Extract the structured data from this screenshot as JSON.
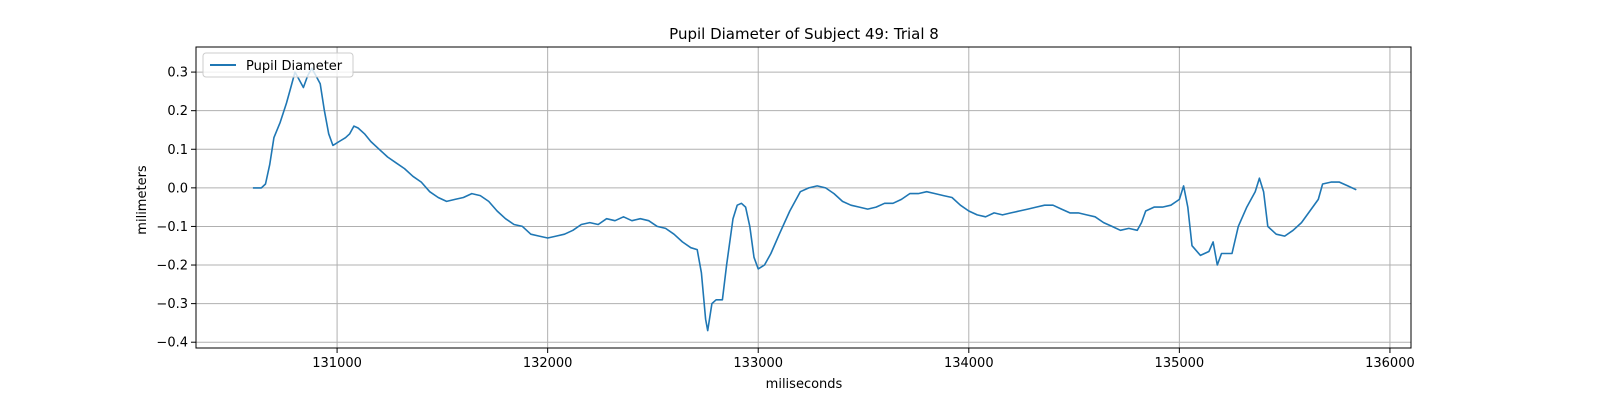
{
  "chart_data": {
    "type": "line",
    "title": "Pupil Diameter of Subject 49: Trial 8",
    "xlabel": "miliseconds",
    "ylabel": "milimeters",
    "xlim": [
      130330,
      136100
    ],
    "ylim": [
      -0.415,
      0.365
    ],
    "xticks": [
      131000,
      132000,
      133000,
      134000,
      135000,
      136000
    ],
    "xtick_labels": [
      "131000",
      "132000",
      "133000",
      "134000",
      "135000",
      "136000"
    ],
    "yticks": [
      -0.4,
      -0.3,
      -0.2,
      -0.1,
      0.0,
      0.1,
      0.2,
      0.3
    ],
    "ytick_labels": [
      "−0.4",
      "−0.3",
      "−0.2",
      "−0.1",
      "0.0",
      "0.1",
      "0.2",
      "0.3"
    ],
    "grid": true,
    "legend_position": "top-left",
    "color": "#1f77b4",
    "series": [
      {
        "name": "Pupil Diameter",
        "points": [
          [
            130600,
            0.0
          ],
          [
            130640,
            0.0
          ],
          [
            130660,
            0.01
          ],
          [
            130680,
            0.06
          ],
          [
            130700,
            0.13
          ],
          [
            130730,
            0.17
          ],
          [
            130760,
            0.22
          ],
          [
            130780,
            0.26
          ],
          [
            130800,
            0.3
          ],
          [
            130820,
            0.28
          ],
          [
            130840,
            0.26
          ],
          [
            130860,
            0.29
          ],
          [
            130880,
            0.31
          ],
          [
            130900,
            0.29
          ],
          [
            130920,
            0.27
          ],
          [
            130940,
            0.2
          ],
          [
            130960,
            0.14
          ],
          [
            130980,
            0.11
          ],
          [
            131010,
            0.12
          ],
          [
            131040,
            0.13
          ],
          [
            131060,
            0.14
          ],
          [
            131080,
            0.16
          ],
          [
            131100,
            0.155
          ],
          [
            131130,
            0.14
          ],
          [
            131160,
            0.12
          ],
          [
            131200,
            0.1
          ],
          [
            131240,
            0.08
          ],
          [
            131280,
            0.065
          ],
          [
            131320,
            0.05
          ],
          [
            131360,
            0.03
          ],
          [
            131400,
            0.015
          ],
          [
            131440,
            -0.01
          ],
          [
            131480,
            -0.025
          ],
          [
            131520,
            -0.035
          ],
          [
            131560,
            -0.03
          ],
          [
            131600,
            -0.025
          ],
          [
            131640,
            -0.015
          ],
          [
            131680,
            -0.02
          ],
          [
            131720,
            -0.035
          ],
          [
            131760,
            -0.06
          ],
          [
            131800,
            -0.08
          ],
          [
            131840,
            -0.095
          ],
          [
            131880,
            -0.1
          ],
          [
            131920,
            -0.12
          ],
          [
            131960,
            -0.125
          ],
          [
            132000,
            -0.13
          ],
          [
            132040,
            -0.125
          ],
          [
            132080,
            -0.12
          ],
          [
            132120,
            -0.11
          ],
          [
            132160,
            -0.095
          ],
          [
            132200,
            -0.09
          ],
          [
            132240,
            -0.095
          ],
          [
            132280,
            -0.08
          ],
          [
            132320,
            -0.085
          ],
          [
            132360,
            -0.075
          ],
          [
            132400,
            -0.085
          ],
          [
            132440,
            -0.08
          ],
          [
            132480,
            -0.085
          ],
          [
            132520,
            -0.1
          ],
          [
            132560,
            -0.105
          ],
          [
            132600,
            -0.12
          ],
          [
            132640,
            -0.14
          ],
          [
            132680,
            -0.155
          ],
          [
            132710,
            -0.16
          ],
          [
            132730,
            -0.22
          ],
          [
            132750,
            -0.34
          ],
          [
            132760,
            -0.37
          ],
          [
            132780,
            -0.3
          ],
          [
            132800,
            -0.29
          ],
          [
            132830,
            -0.29
          ],
          [
            132850,
            -0.2
          ],
          [
            132880,
            -0.08
          ],
          [
            132900,
            -0.045
          ],
          [
            132920,
            -0.04
          ],
          [
            132940,
            -0.05
          ],
          [
            132960,
            -0.1
          ],
          [
            132980,
            -0.18
          ],
          [
            133000,
            -0.21
          ],
          [
            133030,
            -0.2
          ],
          [
            133060,
            -0.17
          ],
          [
            133100,
            -0.12
          ],
          [
            133150,
            -0.06
          ],
          [
            133200,
            -0.01
          ],
          [
            133240,
            0.0
          ],
          [
            133280,
            0.005
          ],
          [
            133320,
            0.0
          ],
          [
            133360,
            -0.015
          ],
          [
            133400,
            -0.035
          ],
          [
            133440,
            -0.045
          ],
          [
            133480,
            -0.05
          ],
          [
            133520,
            -0.055
          ],
          [
            133560,
            -0.05
          ],
          [
            133600,
            -0.04
          ],
          [
            133640,
            -0.04
          ],
          [
            133680,
            -0.03
          ],
          [
            133720,
            -0.015
          ],
          [
            133760,
            -0.015
          ],
          [
            133800,
            -0.01
          ],
          [
            133840,
            -0.015
          ],
          [
            133880,
            -0.02
          ],
          [
            133920,
            -0.025
          ],
          [
            133960,
            -0.045
          ],
          [
            134000,
            -0.06
          ],
          [
            134040,
            -0.07
          ],
          [
            134080,
            -0.075
          ],
          [
            134120,
            -0.065
          ],
          [
            134160,
            -0.07
          ],
          [
            134200,
            -0.065
          ],
          [
            134240,
            -0.06
          ],
          [
            134280,
            -0.055
          ],
          [
            134320,
            -0.05
          ],
          [
            134360,
            -0.045
          ],
          [
            134400,
            -0.045
          ],
          [
            134440,
            -0.055
          ],
          [
            134480,
            -0.065
          ],
          [
            134520,
            -0.065
          ],
          [
            134560,
            -0.07
          ],
          [
            134600,
            -0.075
          ],
          [
            134640,
            -0.09
          ],
          [
            134680,
            -0.1
          ],
          [
            134720,
            -0.11
          ],
          [
            134760,
            -0.105
          ],
          [
            134800,
            -0.11
          ],
          [
            134820,
            -0.09
          ],
          [
            134840,
            -0.06
          ],
          [
            134880,
            -0.05
          ],
          [
            134920,
            -0.05
          ],
          [
            134960,
            -0.045
          ],
          [
            135000,
            -0.03
          ],
          [
            135020,
            0.005
          ],
          [
            135040,
            -0.05
          ],
          [
            135060,
            -0.15
          ],
          [
            135100,
            -0.175
          ],
          [
            135140,
            -0.165
          ],
          [
            135160,
            -0.14
          ],
          [
            135180,
            -0.2
          ],
          [
            135200,
            -0.17
          ],
          [
            135250,
            -0.17
          ],
          [
            135280,
            -0.1
          ],
          [
            135320,
            -0.05
          ],
          [
            135360,
            -0.01
          ],
          [
            135380,
            0.025
          ],
          [
            135400,
            -0.01
          ],
          [
            135420,
            -0.1
          ],
          [
            135460,
            -0.12
          ],
          [
            135500,
            -0.125
          ],
          [
            135540,
            -0.11
          ],
          [
            135580,
            -0.09
          ],
          [
            135620,
            -0.06
          ],
          [
            135660,
            -0.03
          ],
          [
            135680,
            0.01
          ],
          [
            135720,
            0.015
          ],
          [
            135760,
            0.015
          ],
          [
            135800,
            0.005
          ],
          [
            135840,
            -0.005
          ]
        ]
      }
    ]
  }
}
